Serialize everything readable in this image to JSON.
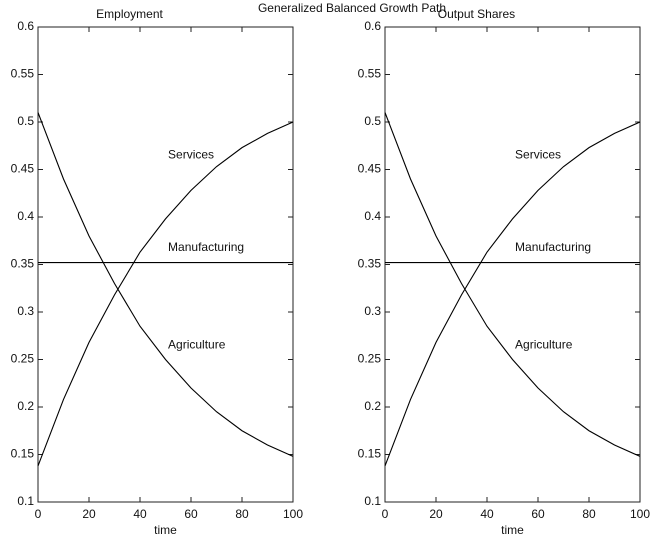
{
  "title": "Generalized Balanced Growth Path",
  "chart_data": [
    {
      "type": "line",
      "title": "Employment",
      "x_label": "time",
      "x": [
        0,
        10,
        20,
        30,
        40,
        50,
        60,
        70,
        80,
        90,
        100
      ],
      "series": [
        {
          "name": "Services",
          "color": "#000000",
          "values": [
            0.138,
            0.208,
            0.268,
            0.318,
            0.363,
            0.398,
            0.428,
            0.453,
            0.473,
            0.488,
            0.5
          ]
        },
        {
          "name": "Manufacturing",
          "color": "#000000",
          "values": [
            0.352,
            0.352,
            0.352,
            0.352,
            0.352,
            0.352,
            0.352,
            0.352,
            0.352,
            0.352,
            0.352
          ]
        },
        {
          "name": "Agriculture",
          "color": "#000000",
          "values": [
            0.51,
            0.44,
            0.38,
            0.33,
            0.285,
            0.25,
            0.22,
            0.195,
            0.175,
            0.16,
            0.148
          ]
        }
      ],
      "xlim": [
        0,
        100
      ],
      "xticks": [
        0,
        20,
        40,
        60,
        80,
        100
      ],
      "ylim": [
        0.1,
        0.6
      ],
      "yticks": [
        0.1,
        0.15,
        0.2,
        0.25,
        0.3,
        0.35,
        0.4,
        0.45,
        0.5,
        0.55,
        0.6
      ],
      "grid": false
    },
    {
      "type": "line",
      "title": "Output Shares",
      "x_label": "time",
      "x": [
        0,
        10,
        20,
        30,
        40,
        50,
        60,
        70,
        80,
        90,
        100
      ],
      "series": [
        {
          "name": "Services",
          "color": "#000000",
          "values": [
            0.138,
            0.208,
            0.268,
            0.318,
            0.363,
            0.398,
            0.428,
            0.453,
            0.473,
            0.488,
            0.5
          ]
        },
        {
          "name": "Manufacturing",
          "color": "#000000",
          "values": [
            0.352,
            0.352,
            0.352,
            0.352,
            0.352,
            0.352,
            0.352,
            0.352,
            0.352,
            0.352,
            0.352
          ]
        },
        {
          "name": "Agriculture",
          "color": "#000000",
          "values": [
            0.51,
            0.44,
            0.38,
            0.33,
            0.285,
            0.25,
            0.22,
            0.195,
            0.175,
            0.16,
            0.148
          ]
        }
      ],
      "xlim": [
        0,
        100
      ],
      "xticks": [
        0,
        20,
        40,
        60,
        80,
        100
      ],
      "ylim": [
        0.1,
        0.6
      ],
      "yticks": [
        0.1,
        0.15,
        0.2,
        0.25,
        0.3,
        0.35,
        0.4,
        0.45,
        0.5,
        0.55,
        0.6
      ],
      "grid": false
    }
  ]
}
